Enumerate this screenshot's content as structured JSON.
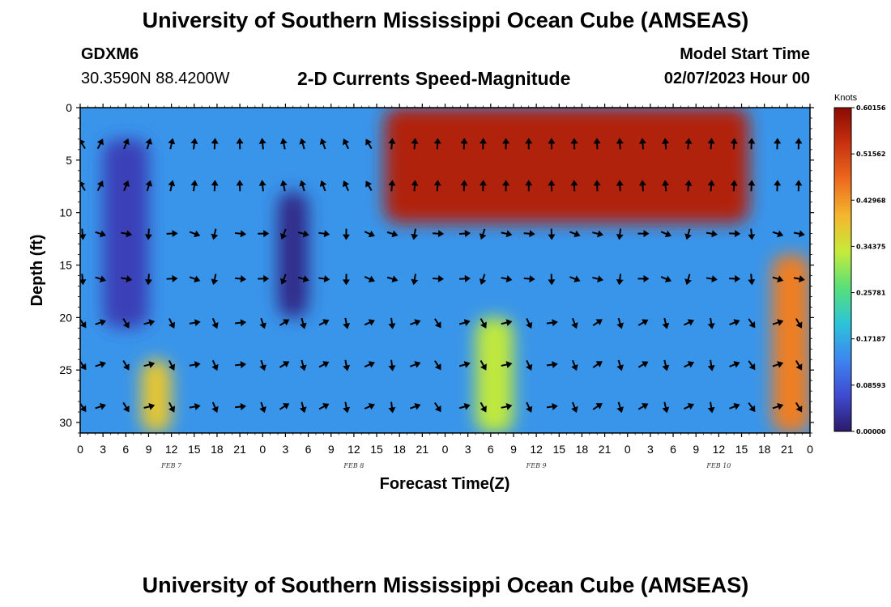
{
  "header": {
    "title": "University of Southern Mississippi Ocean Cube (AMSEAS)",
    "station": "GDXM6",
    "coords": "30.3590N  88.4200W",
    "subtitle": "2-D Currents Speed-Magnitude",
    "start_label": "Model Start Time",
    "start_value": "02/07/2023 Hour 00"
  },
  "footer": {
    "title": "University of Southern Mississippi Ocean Cube (AMSEAS)"
  },
  "chart_data": {
    "type": "heatmap",
    "title": "2-D Currents Speed-Magnitude",
    "xlabel": "Forecast Time(Z)",
    "ylabel": "Depth (ft)",
    "x_range_hours": [
      0,
      96
    ],
    "y_range_ft": [
      0,
      31
    ],
    "y_inverted": true,
    "x_tick_labels": [
      "0",
      "3",
      "6",
      "9",
      "12",
      "15",
      "18",
      "21",
      "0",
      "3",
      "6",
      "9",
      "12",
      "15",
      "18",
      "21",
      "0",
      "3",
      "6",
      "9",
      "12",
      "15",
      "18",
      "21",
      "0",
      "3",
      "6",
      "9",
      "12",
      "15",
      "18",
      "21",
      "0"
    ],
    "y_ticks": [
      0,
      5,
      10,
      15,
      20,
      25,
      30
    ],
    "date_labels": [
      {
        "label": "FEB 7",
        "hour": 12
      },
      {
        "label": "FEB 8",
        "hour": 36
      },
      {
        "label": "FEB 9",
        "hour": 60
      },
      {
        "label": "FEB 10",
        "hour": 84
      }
    ],
    "colorbar": {
      "unit": "Knots",
      "tick_labels": [
        "0.60156",
        "0.51562",
        "0.42968",
        "0.34375",
        "0.25781",
        "0.17187",
        "0.08593",
        "0.00000"
      ],
      "min": 0.0,
      "max": 0.60156,
      "colors": [
        "#2b1a6a",
        "#3f4bd1",
        "#3d86f0",
        "#2cc4d8",
        "#58e07a",
        "#c7ea3a",
        "#f4b62e",
        "#ed6a1f",
        "#c8320f",
        "#8a0a02"
      ]
    },
    "arrow_times_hours": [
      0.3,
      2.6,
      6,
      9,
      12,
      15,
      17.7,
      21,
      24,
      26.8,
      29.3,
      32,
      35,
      38,
      41,
      44,
      47,
      50.5,
      53,
      56,
      59,
      62,
      65,
      68,
      71,
      74,
      77,
      80,
      83,
      86,
      88.3,
      91.7,
      94.5
    ],
    "arrow_depths_ft": [
      3.5,
      7.5,
      12,
      16.3,
      20.5,
      24.5,
      28.5
    ],
    "speed_regions_knots": [
      {
        "name": "background",
        "value": 0.15
      },
      {
        "name": "high surface layer Feb 8-10",
        "time_hours": [
          40,
          88
        ],
        "depth_ft": [
          0,
          11
        ],
        "value": 0.56
      },
      {
        "name": "nearshore jet Feb 10 late",
        "time_hours": [
          91,
          96
        ],
        "depth_ft": [
          14,
          31
        ],
        "value": 0.45
      },
      {
        "name": "low core Feb 7",
        "time_hours": [
          3,
          9
        ],
        "depth_ft": [
          3,
          21
        ],
        "value": 0.05
      },
      {
        "name": "low core Feb 8",
        "time_hours": [
          26,
          30
        ],
        "depth_ft": [
          8,
          20
        ],
        "value": 0.02
      },
      {
        "name": "moderate near-bed Feb 7",
        "time_hours": [
          8,
          12
        ],
        "depth_ft": [
          24,
          31
        ],
        "value": 0.38
      },
      {
        "name": "moderate near-bed Feb 9",
        "time_hours": [
          52,
          57
        ],
        "depth_ft": [
          20,
          31
        ],
        "value": 0.33
      }
    ]
  }
}
